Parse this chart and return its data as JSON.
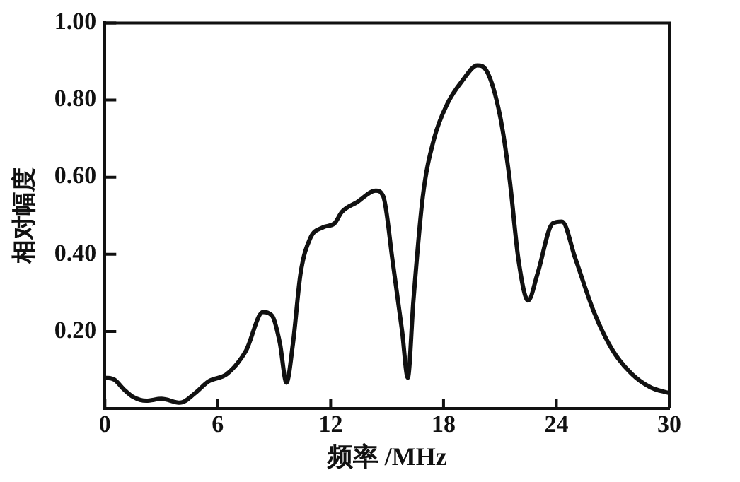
{
  "chart_data": {
    "type": "line",
    "xlabel": "频率 /MHz",
    "ylabel": "相对幅度",
    "series": [
      {
        "color": "#111111",
        "x": [
          0,
          0.5,
          1,
          1.5,
          2.2,
          3,
          4,
          4.8,
          5.5,
          6.5,
          7.5,
          8.4,
          8.9,
          9.3,
          9.65,
          10,
          10.4,
          10.9,
          11.6,
          12.2,
          12.6,
          13.4,
          14.4,
          14.8,
          15.3,
          15.8,
          16.1,
          16.4,
          16.9,
          17.5,
          18.2,
          19,
          19.8,
          20.3,
          21,
          21.5,
          22,
          22.5,
          23,
          23.8,
          24.3,
          25,
          26,
          27,
          28,
          29,
          30
        ],
        "values": [
          0.08,
          0.075,
          0.05,
          0.03,
          0.02,
          0.025,
          0.015,
          0.04,
          0.07,
          0.09,
          0.15,
          0.25,
          0.24,
          0.17,
          0.067,
          0.17,
          0.35,
          0.44,
          0.47,
          0.48,
          0.51,
          0.535,
          0.565,
          0.55,
          0.38,
          0.2,
          0.08,
          0.28,
          0.55,
          0.7,
          0.79,
          0.85,
          0.89,
          0.875,
          0.76,
          0.6,
          0.38,
          0.28,
          0.35,
          0.48,
          0.485,
          0.39,
          0.25,
          0.15,
          0.09,
          0.055,
          0.04
        ]
      }
    ],
    "xlim": [
      0,
      30
    ],
    "xticks": [
      0,
      6,
      12,
      18,
      24,
      30
    ],
    "ylim": [
      0,
      1
    ],
    "yticks": [
      {
        "value": 0,
        "label": null
      },
      {
        "value": 0.2,
        "label": "0.20"
      },
      {
        "value": 0.4,
        "label": "0.40"
      },
      {
        "value": 0.6,
        "label": "0.60"
      },
      {
        "value": 0.8,
        "label": "0.80"
      },
      {
        "value": 1,
        "label": "1.00"
      }
    ],
    "grid": false,
    "legend": false,
    "marker": "none",
    "line_style": "solid"
  }
}
